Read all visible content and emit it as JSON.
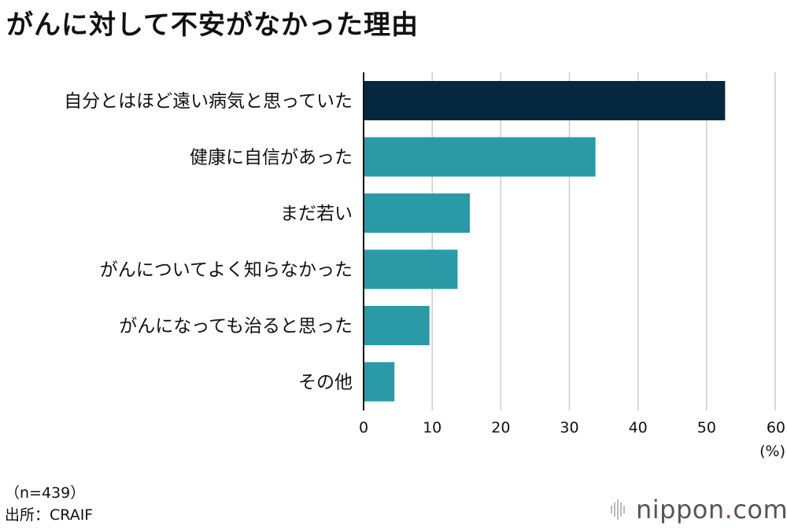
{
  "title": "がんに対して不安がなかった理由",
  "notes": {
    "sample": "（n=439）",
    "source": "出所：CRAIF"
  },
  "brand": {
    "name": "nippon",
    "dot": ".",
    "suffix": "com"
  },
  "colors": {
    "highlight": "#052840",
    "bar": "#2a9aa6",
    "grid": "#cccccc",
    "axis": "#111111"
  },
  "chart_data": {
    "type": "bar",
    "orientation": "horizontal",
    "categories": [
      "自分とはほど遠い病気と思っていた",
      "健康に自信があった",
      "まだ若い",
      "がんについてよく知らなかった",
      "がんになっても治ると思った",
      "その他"
    ],
    "values": [
      52.7,
      33.8,
      15.5,
      13.7,
      9.6,
      4.5
    ],
    "highlight_index": 0,
    "xlim": [
      0,
      60
    ],
    "xticks": [
      0,
      10,
      20,
      30,
      40,
      50,
      60
    ],
    "xunit": "(%)",
    "grid": true
  }
}
